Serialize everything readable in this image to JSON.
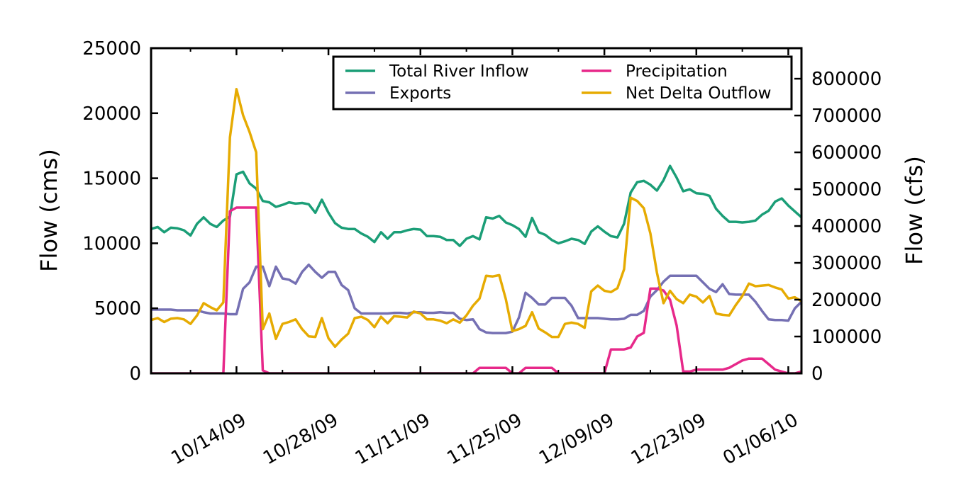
{
  "chart_data": {
    "type": "line",
    "title": "",
    "xlabel": "",
    "ylabel": "Flow (cms)",
    "ylabel_right": "Flow (cfs)",
    "x_start": "10/01/09",
    "x_end": "01/08/10",
    "x_tick_labels": [
      "10/14/09",
      "10/28/09",
      "11/11/09",
      "11/25/09",
      "12/09/09",
      "12/23/09",
      "01/06/10"
    ],
    "ylim": [
      0,
      25000
    ],
    "y_ticks": [
      0,
      5000,
      10000,
      15000,
      20000,
      25000
    ],
    "ylim_right": [
      0,
      882867
    ],
    "y_ticks_right": [
      0,
      100000,
      200000,
      300000,
      400000,
      500000,
      600000,
      700000,
      800000
    ],
    "grid": false,
    "legend_position": "top-right",
    "series": [
      {
        "name": "Total River Inflow",
        "color": "#1b9e77",
        "values": [
          11100,
          11250,
          10850,
          11200,
          11150,
          11000,
          10600,
          11500,
          12000,
          11500,
          11250,
          11750,
          12050,
          15300,
          15500,
          14600,
          14200,
          13250,
          13150,
          12800,
          12950,
          13150,
          13050,
          13100,
          13000,
          12350,
          13350,
          12350,
          11550,
          11200,
          11100,
          11100,
          10750,
          10500,
          10100,
          10850,
          10350,
          10850,
          10850,
          11000,
          11100,
          11050,
          10550,
          10550,
          10500,
          10250,
          10250,
          9800,
          10350,
          10550,
          10300,
          12000,
          11900,
          12100,
          11600,
          11400,
          11100,
          10500,
          11950,
          10850,
          10650,
          10250,
          10000,
          10150,
          10350,
          10250,
          9950,
          10900,
          11300,
          10900,
          10550,
          10450,
          11500,
          13900,
          14700,
          14800,
          14500,
          14050,
          14850,
          15950,
          15050,
          14000,
          14150,
          13850,
          13800,
          13650,
          12650,
          12100,
          11650,
          11650,
          11600,
          11650,
          11750,
          12200,
          12500,
          13200,
          13450,
          12900,
          12450,
          12000
        ]
      },
      {
        "name": "Exports",
        "color": "#7570b3",
        "values": [
          4900,
          4900,
          4900,
          4900,
          4850,
          4850,
          4850,
          4850,
          4700,
          4600,
          4600,
          4600,
          4550,
          4550,
          6500,
          7000,
          8200,
          8200,
          6700,
          8200,
          7300,
          7200,
          6900,
          7800,
          8350,
          7800,
          7350,
          7800,
          7800,
          6800,
          6400,
          5000,
          4600,
          4600,
          4600,
          4600,
          4600,
          4650,
          4650,
          4600,
          4700,
          4700,
          4650,
          4650,
          4700,
          4650,
          4650,
          4200,
          4100,
          4150,
          3400,
          3150,
          3100,
          3100,
          3100,
          3200,
          4300,
          6200,
          5800,
          5300,
          5300,
          5800,
          5800,
          5800,
          5200,
          4250,
          4250,
          4250,
          4250,
          4200,
          4150,
          4150,
          4200,
          4500,
          4500,
          4800,
          5900,
          6400,
          7050,
          7500,
          7500,
          7500,
          7500,
          7500,
          7000,
          6500,
          6250,
          6850,
          6100,
          6050,
          6050,
          6050,
          5500,
          4800,
          4150,
          4100,
          4100,
          4050,
          5000,
          5500
        ]
      },
      {
        "name": "Precipitation",
        "color": "#e7298a",
        "values": [
          0,
          0,
          0,
          0,
          0,
          0,
          0,
          0,
          0,
          0,
          0,
          0,
          440000,
          450000,
          450000,
          450000,
          450000,
          8000,
          0,
          0,
          0,
          0,
          0,
          0,
          0,
          0,
          0,
          0,
          0,
          0,
          0,
          0,
          0,
          0,
          0,
          0,
          0,
          0,
          0,
          0,
          0,
          0,
          0,
          0,
          0,
          0,
          0,
          0,
          0,
          0,
          15000,
          15000,
          15000,
          15000,
          15000,
          0,
          0,
          15000,
          15000,
          15000,
          15000,
          15000,
          0,
          0,
          0,
          0,
          0,
          0,
          0,
          0,
          65000,
          65000,
          65000,
          70000,
          100000,
          110000,
          230000,
          230000,
          225000,
          200000,
          130000,
          5000,
          5000,
          10000,
          10000,
          10000,
          10000,
          10000,
          15000,
          25000,
          35000,
          40000,
          40000,
          40000,
          25000,
          10000,
          5000,
          0,
          0,
          5000
        ]
      },
      {
        "name": "Net Delta Outflow",
        "color": "#e6ab02",
        "values": [
          4100,
          4250,
          3950,
          4200,
          4250,
          4150,
          3800,
          4450,
          5400,
          5100,
          4850,
          5450,
          18150,
          21850,
          19850,
          18550,
          17000,
          3400,
          4600,
          2650,
          3800,
          3950,
          4150,
          3400,
          2850,
          2800,
          4250,
          2700,
          2050,
          2600,
          3050,
          4250,
          4350,
          4100,
          3550,
          4350,
          3850,
          4400,
          4350,
          4300,
          4750,
          4600,
          4150,
          4150,
          4050,
          3850,
          4150,
          3900,
          4450,
          5200,
          5750,
          7500,
          7450,
          7550,
          5700,
          3250,
          3400,
          3650,
          4700,
          3450,
          3150,
          2800,
          2800,
          3800,
          3900,
          3800,
          3500,
          6300,
          6750,
          6350,
          6250,
          6550,
          8000,
          13500,
          13250,
          12700,
          10750,
          7750,
          5400,
          6350,
          5700,
          5400,
          6050,
          5900,
          5450,
          5950,
          4600,
          4500,
          4450,
          5250,
          5950,
          6900,
          6700,
          6750,
          6800,
          6600,
          6450,
          5750,
          5850,
          5550
        ]
      }
    ]
  }
}
